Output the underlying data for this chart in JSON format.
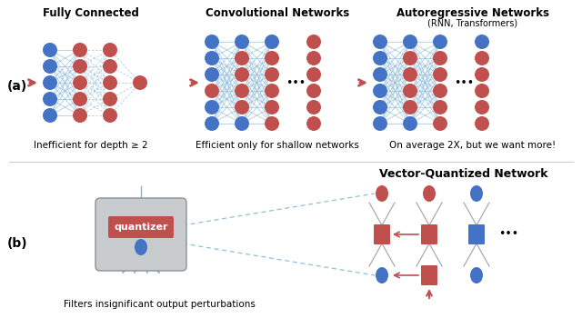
{
  "bg_color": "#ffffff",
  "blue": "#4472C4",
  "red": "#C0504D",
  "line_color": "#7fb3d3",
  "arrow_color": "#C0504D",
  "section_titles": [
    "Fully Connected",
    "Convolutional Networks",
    "Autoregressive Networks"
  ],
  "section_subtitle": "(RNN, Transformers)",
  "section_captions": [
    "Inefficient for depth ≥ 2",
    "Efficient only for shallow networks",
    "On average 2X, but we want more!"
  ],
  "vq_title": "Vector-Quantized Network",
  "quantizer_text": "quantizer",
  "bottom_caption": "Filters insignificant output perturbations",
  "label_a": "(a)",
  "label_b": "(b)"
}
